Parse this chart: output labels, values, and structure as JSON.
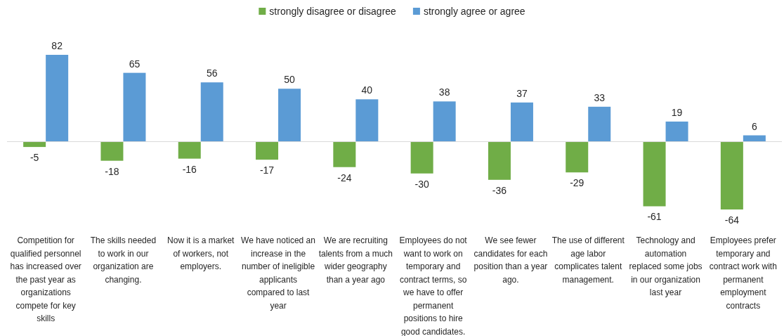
{
  "chart_data": {
    "type": "bar",
    "categories": [
      "Competition for qualified personnel has increased over the past year as organizations compete for key skills",
      "The skills needed to work in our organization are changing.",
      "Now it is a market of workers, not employers.",
      "We have noticed an increase in the number of ineligible applicants compared to last year",
      "We are recruiting talents from a much wider geography than a year ago",
      "Employees do not want to work on temporary and contract terms, so we have to offer permanent positions to hire good candidates.",
      "We see fewer candidates for each position than a year ago.",
      "The use of different age labor complicates talent management.",
      "Technology and automation replaced some jobs in our organization last year",
      "Employees prefer temporary and contract work with permanent employment contracts"
    ],
    "series": [
      {
        "name": "strongly disagree or disagree",
        "color": "#70ad47",
        "values": [
          -5,
          -18,
          -16,
          -17,
          -24,
          -30,
          -36,
          -29,
          -61,
          -64
        ]
      },
      {
        "name": "strongly agree or agree",
        "color": "#5b9bd5",
        "values": [
          82,
          65,
          56,
          50,
          40,
          38,
          37,
          33,
          19,
          6
        ]
      }
    ],
    "data_labels": true,
    "legend": "top"
  }
}
